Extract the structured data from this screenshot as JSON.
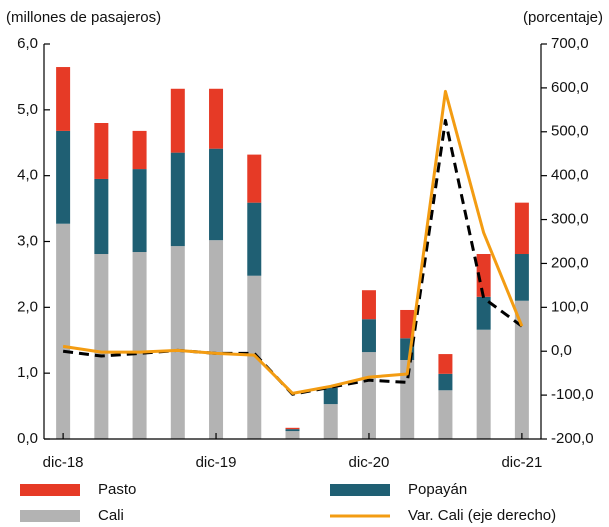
{
  "chart_data": {
    "type": "bar",
    "y_label": "(millones  de pasajeros)",
    "y2_label": "(porcentaje)",
    "categories": [
      "dic-18",
      null,
      null,
      null,
      "dic-19",
      null,
      null,
      null,
      "dic-20",
      null,
      null,
      null,
      "dic-21"
    ],
    "ylim": [
      0,
      6
    ],
    "yticks": [
      {
        "value": 0,
        "label": "0,0"
      },
      {
        "value": 1,
        "label": "1,0"
      },
      {
        "value": 2,
        "label": "2,0"
      },
      {
        "value": 3,
        "label": "3,0"
      },
      {
        "value": 4,
        "label": "4,0"
      },
      {
        "value": 5,
        "label": "5,0"
      },
      {
        "value": 6,
        "label": "6,0"
      }
    ],
    "y2lim": [
      -200,
      700
    ],
    "y2ticks": [
      {
        "value": -200,
        "label": "-200,0"
      },
      {
        "value": -100,
        "label": "-100,0"
      },
      {
        "value": 0,
        "label": "0,0"
      },
      {
        "value": 100,
        "label": "100,0"
      },
      {
        "value": 200,
        "label": "200,0"
      },
      {
        "value": 300,
        "label": "300,0"
      },
      {
        "value": 400,
        "label": "400,0"
      },
      {
        "value": 500,
        "label": "500,0"
      },
      {
        "value": 600,
        "label": "600,0"
      },
      {
        "value": 700,
        "label": "700,0"
      }
    ],
    "series": [
      {
        "name": "Cali",
        "type": "bar",
        "color": "#b3b3b3",
        "values": [
          3.27,
          2.81,
          2.84,
          2.93,
          3.02,
          2.48,
          0.12,
          0.53,
          1.32,
          1.2,
          0.74,
          1.66,
          2.1
        ]
      },
      {
        "name": "Popayán",
        "type": "bar",
        "color": "#1f5f73",
        "values": [
          1.41,
          1.14,
          1.26,
          1.42,
          1.39,
          1.11,
          0.03,
          0.25,
          0.5,
          0.33,
          0.25,
          0.5,
          0.71
        ]
      },
      {
        "name": "Pasto",
        "type": "bar",
        "color": "#e63a26",
        "values": [
          0.97,
          0.85,
          0.58,
          0.97,
          0.91,
          0.73,
          0.02,
          0.02,
          0.44,
          0.43,
          0.3,
          0.65,
          0.78
        ]
      },
      {
        "type": "line",
        "axis": "y2",
        "dashed": true,
        "color": "#000000",
        "values": [
          0,
          -11,
          -5,
          2,
          -5,
          -5,
          -98,
          -82,
          -66,
          -71,
          526,
          121,
          57
        ]
      },
      {
        "name": "Var. Cali (eje derecho)",
        "type": "line",
        "axis": "y2",
        "color": "#f39c12",
        "values": [
          11,
          -2,
          -2,
          2,
          -5,
          -9,
          -96,
          -80,
          -59,
          -52,
          592,
          270,
          57
        ]
      }
    ]
  }
}
